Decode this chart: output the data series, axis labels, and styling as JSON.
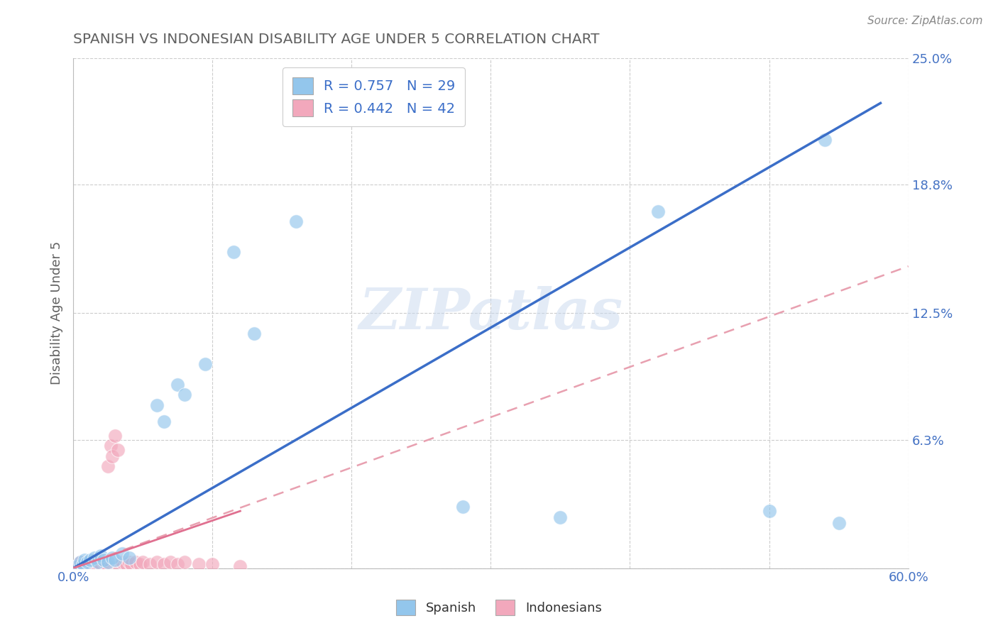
{
  "title": "SPANISH VS INDONESIAN DISABILITY AGE UNDER 5 CORRELATION CHART",
  "source": "Source: ZipAtlas.com",
  "xlabel": "",
  "ylabel": "Disability Age Under 5",
  "xlim": [
    0.0,
    0.6
  ],
  "ylim": [
    0.0,
    0.25
  ],
  "xticks": [
    0.0,
    0.1,
    0.2,
    0.3,
    0.4,
    0.5,
    0.6
  ],
  "xticklabels": [
    "0.0%",
    "",
    "",
    "",
    "",
    "",
    "60.0%"
  ],
  "yticks": [
    0.0,
    0.063,
    0.125,
    0.188,
    0.25
  ],
  "yticklabels": [
    "",
    "6.3%",
    "12.5%",
    "18.8%",
    "25.0%"
  ],
  "spanish_r": 0.757,
  "spanish_n": 29,
  "indonesian_r": 0.442,
  "indonesian_n": 42,
  "spanish_color": "#93C6EC",
  "indonesian_color": "#F2A8BC",
  "spanish_line_color": "#3B6EC8",
  "indonesian_line_color": "#E07090",
  "indonesian_dash_color": "#E8A0B0",
  "watermark_text": "ZIPatlas",
  "watermark_color": "#C8D8EE",
  "grid_color": "#CCCCCC",
  "title_color": "#606060",
  "axis_label_color": "#4472C4",
  "legend_label_color": "#3B6EC8",
  "spanish_points": [
    [
      0.003,
      0.001
    ],
    [
      0.005,
      0.003
    ],
    [
      0.007,
      0.002
    ],
    [
      0.008,
      0.004
    ],
    [
      0.01,
      0.003
    ],
    [
      0.012,
      0.004
    ],
    [
      0.015,
      0.005
    ],
    [
      0.018,
      0.003
    ],
    [
      0.02,
      0.006
    ],
    [
      0.022,
      0.004
    ],
    [
      0.025,
      0.003
    ],
    [
      0.028,
      0.005
    ],
    [
      0.03,
      0.004
    ],
    [
      0.035,
      0.007
    ],
    [
      0.04,
      0.005
    ],
    [
      0.06,
      0.08
    ],
    [
      0.065,
      0.072
    ],
    [
      0.075,
      0.09
    ],
    [
      0.08,
      0.085
    ],
    [
      0.095,
      0.1
    ],
    [
      0.115,
      0.155
    ],
    [
      0.13,
      0.115
    ],
    [
      0.16,
      0.17
    ],
    [
      0.28,
      0.03
    ],
    [
      0.35,
      0.025
    ],
    [
      0.42,
      0.175
    ],
    [
      0.5,
      0.028
    ],
    [
      0.54,
      0.21
    ],
    [
      0.55,
      0.022
    ]
  ],
  "indonesian_points": [
    [
      0.002,
      0.001
    ],
    [
      0.004,
      0.002
    ],
    [
      0.005,
      0.003
    ],
    [
      0.006,
      0.001
    ],
    [
      0.007,
      0.002
    ],
    [
      0.008,
      0.003
    ],
    [
      0.009,
      0.001
    ],
    [
      0.01,
      0.002
    ],
    [
      0.011,
      0.003
    ],
    [
      0.012,
      0.002
    ],
    [
      0.013,
      0.001
    ],
    [
      0.014,
      0.003
    ],
    [
      0.015,
      0.002
    ],
    [
      0.016,
      0.004
    ],
    [
      0.017,
      0.002
    ],
    [
      0.018,
      0.003
    ],
    [
      0.019,
      0.001
    ],
    [
      0.02,
      0.002
    ],
    [
      0.022,
      0.003
    ],
    [
      0.024,
      0.002
    ],
    [
      0.025,
      0.05
    ],
    [
      0.027,
      0.06
    ],
    [
      0.028,
      0.055
    ],
    [
      0.03,
      0.065
    ],
    [
      0.032,
      0.058
    ],
    [
      0.033,
      0.001
    ],
    [
      0.035,
      0.003
    ],
    [
      0.038,
      0.002
    ],
    [
      0.04,
      0.003
    ],
    [
      0.042,
      0.002
    ],
    [
      0.045,
      0.003
    ],
    [
      0.048,
      0.002
    ],
    [
      0.05,
      0.003
    ],
    [
      0.055,
      0.002
    ],
    [
      0.06,
      0.003
    ],
    [
      0.065,
      0.002
    ],
    [
      0.07,
      0.003
    ],
    [
      0.075,
      0.002
    ],
    [
      0.08,
      0.003
    ],
    [
      0.09,
      0.002
    ],
    [
      0.1,
      0.002
    ],
    [
      0.12,
      0.001
    ]
  ],
  "spanish_line": [
    0.0,
    0.0,
    0.58,
    0.228
  ],
  "indonesian_dash_line": [
    0.0,
    0.0,
    0.6,
    0.148
  ],
  "indonesian_solid_line": [
    0.0,
    0.0,
    0.12,
    0.028
  ]
}
